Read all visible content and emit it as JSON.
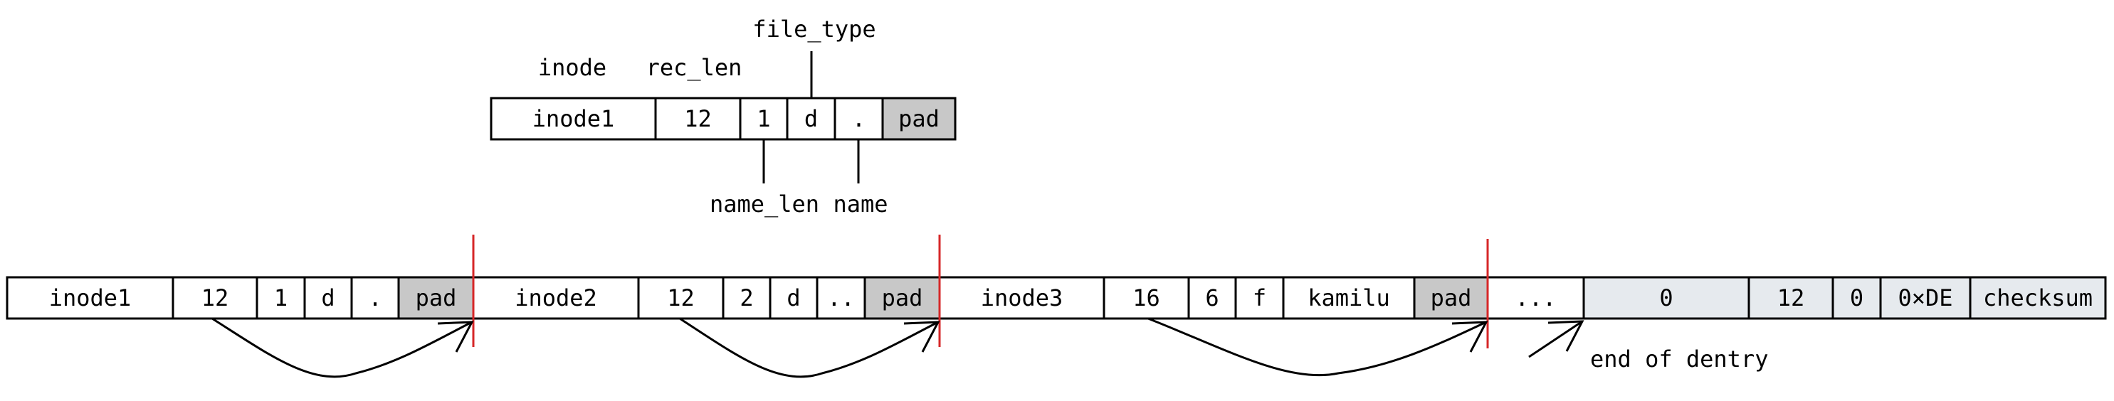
{
  "colors": {
    "pad_fill": "#c8c8c8",
    "tail_fill": "#e6eaee",
    "cell_fill": "#ffffff",
    "separator": "#d62728",
    "stroke": "#000000"
  },
  "entry_detail": {
    "labels": {
      "inode": "inode",
      "rec_len": "rec_len",
      "file_type": "file_type",
      "name_len": "name_len",
      "name": "name"
    },
    "fields": [
      {
        "text": "inode1",
        "kind": "field"
      },
      {
        "text": "12",
        "kind": "field"
      },
      {
        "text": "1",
        "kind": "field"
      },
      {
        "text": "d",
        "kind": "field"
      },
      {
        "text": ".",
        "kind": "field"
      },
      {
        "text": "pad",
        "kind": "pad"
      }
    ]
  },
  "block": {
    "entries": [
      {
        "name": "entry-1",
        "fields": [
          {
            "text": "inode1",
            "kind": "field"
          },
          {
            "text": "12",
            "kind": "field"
          },
          {
            "text": "1",
            "kind": "field"
          },
          {
            "text": "d",
            "kind": "field"
          },
          {
            "text": ".",
            "kind": "field"
          },
          {
            "text": "pad",
            "kind": "pad"
          }
        ]
      },
      {
        "name": "entry-2",
        "fields": [
          {
            "text": "inode2",
            "kind": "field"
          },
          {
            "text": "12",
            "kind": "field"
          },
          {
            "text": "2",
            "kind": "field"
          },
          {
            "text": "d",
            "kind": "field"
          },
          {
            "text": "..",
            "kind": "field"
          },
          {
            "text": "pad",
            "kind": "pad"
          }
        ]
      },
      {
        "name": "entry-3",
        "fields": [
          {
            "text": "inode3",
            "kind": "field"
          },
          {
            "text": "16",
            "kind": "field"
          },
          {
            "text": "6",
            "kind": "field"
          },
          {
            "text": "f",
            "kind": "field"
          },
          {
            "text": "kamilu",
            "kind": "field"
          },
          {
            "text": "pad",
            "kind": "pad"
          }
        ]
      },
      {
        "name": "entry-more",
        "fields": [
          {
            "text": "...",
            "kind": "field"
          }
        ]
      },
      {
        "name": "entry-tail",
        "fields": [
          {
            "text": "0",
            "kind": "tail"
          },
          {
            "text": "12",
            "kind": "tail"
          },
          {
            "text": "0",
            "kind": "tail"
          },
          {
            "text": "0×DE",
            "kind": "tail"
          },
          {
            "text": "checksum",
            "kind": "tail"
          }
        ]
      }
    ],
    "end_label": "end of dentry"
  }
}
